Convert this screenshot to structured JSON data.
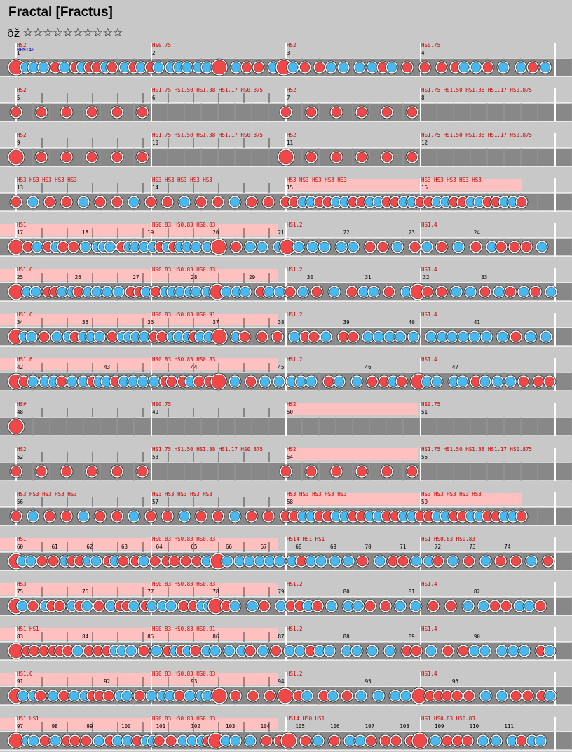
{
  "title": "Fractal [Fractus]",
  "difficulty_label": "ðž",
  "stars": "☆☆☆☆☆☆☆☆☆☆",
  "bpm_label": "BPM140",
  "colors": {
    "don": "#f04848",
    "ka": "#48b8f0",
    "lane": "#888888",
    "scroll_hl": "#ffc0c0",
    "hs_text": "#cc0000",
    "bpm_text": "#0000cc"
  },
  "rows": [
    {
      "measures": [
        "1",
        "2",
        "3",
        "4"
      ],
      "hs": [
        "HS2",
        "HS0.75",
        "HS2",
        "HS0.75"
      ],
      "notes": "",
      "hl": []
    },
    {
      "measures": [
        "5",
        "6",
        "7",
        "8"
      ],
      "hs": [
        "HS2",
        "HS1.75 HS1.50 HS1.38 HS1.17 HS0.875",
        "HS2",
        "HS1.75 HS1.50 HS1.38 HS1.17 HS0.875"
      ],
      "notes": "r6",
      "hl": []
    },
    {
      "measures": [
        "9",
        "10",
        "11",
        "12"
      ],
      "hs": [
        "HS2",
        "HS1.75 HS1.50 HS1.38 HS1.17 HS0.875",
        "HS2",
        "HS1.75 HS1.50 HS1.38 HS1.17 HS0.875"
      ],
      "notes": "R6",
      "hl": []
    },
    {
      "measures": [
        "13",
        "14",
        "15",
        "16"
      ],
      "hs": [
        "HS3 HS3 HS3 HS3 HS3",
        "HS3 HS3 HS3 HS3 HS3",
        "HS3 HS3 HS3 HS3 HS3",
        "HS3 HS3 HS3 HS3 HS3"
      ],
      "notes": "dense1",
      "hl": [
        [
          410,
          745
        ]
      ]
    },
    {
      "measures": [
        "17",
        "18",
        "19",
        "20",
        "21",
        "22",
        "23",
        "24"
      ],
      "hs": [
        "HS1",
        "HS0.83 HS0.83 HS0.83",
        "HS1.2",
        "HS1.4"
      ],
      "notes": "mix",
      "hl": [
        [
          0,
          396
        ]
      ]
    },
    {
      "measures": [
        "25",
        "26",
        "27",
        "28",
        "29",
        "30",
        "31",
        "32",
        "33"
      ],
      "hs": [
        "HS1.6",
        "HS0.83 HS0.83 HS0.83",
        "HS1.2",
        "HS1.4"
      ],
      "notes": "mix2",
      "hl": [
        [
          0,
          396
        ]
      ]
    },
    {
      "measures": [
        "34",
        "35",
        "36",
        "37",
        "38",
        "39",
        "40",
        "41"
      ],
      "hs": [
        "HS1.6",
        "HS0.83 HS0.83 HS0.91",
        "HS1.2",
        "HS1.4"
      ],
      "notes": "mix",
      "hl": [
        [
          0,
          396
        ]
      ]
    },
    {
      "measures": [
        "42",
        "43",
        "44",
        "45",
        "46",
        "47"
      ],
      "hs": [
        "HS1.6",
        "HS0.83 HS0.83 HS0.83",
        "HS1.2",
        "HS1.4"
      ],
      "notes": "mix2",
      "hl": [
        [
          0,
          396
        ]
      ]
    },
    {
      "measures": [
        "48",
        "49",
        "50",
        "51"
      ],
      "hs": [
        "HS#",
        "HS0.75",
        "HS2",
        "HS0.75"
      ],
      "notes": "R1",
      "hl": [
        [
          410,
          596
        ]
      ]
    },
    {
      "measures": [
        "52",
        "53",
        "54",
        "55"
      ],
      "hs": [
        "HS2",
        "HS1.75 HS1.50 HS1.38 HS1.17 HS0.875",
        "HS2",
        "HS1.75 HS1.50 HS1.38 HS1.17 HS0.875"
      ],
      "notes": "r6",
      "hl": [
        [
          410,
          596
        ]
      ]
    },
    {
      "measures": [
        "56",
        "57",
        "58",
        "59"
      ],
      "hs": [
        "HS3 HS3 HS3 HS3 HS3",
        "HS3 HS3 HS3 HS3 HS3",
        "HS3 HS3 HS3 HS3 HS3",
        "HS3 HS3 HS3 HS3 HS3"
      ],
      "notes": "dense1",
      "hl": [
        [
          410,
          745
        ]
      ]
    },
    {
      "measures": [
        "60",
        "61",
        "62",
        "63",
        "64",
        "65",
        "66",
        "67",
        "68",
        "69",
        "70",
        "71",
        "72",
        "73",
        "74"
      ],
      "hs": [
        "HS1",
        "HS0.83 HS0.83 HS0.83",
        "HS14 HS1 HS1",
        "HS1 HS0.83 HS0.83"
      ],
      "notes": "mix3",
      "hl": [
        [
          0,
          396
        ]
      ]
    },
    {
      "measures": [
        "75",
        "76",
        "77",
        "78",
        "79",
        "80",
        "81",
        "82"
      ],
      "hs": [
        "HS3",
        "HS0.83 HS0.83 HS0.83",
        "HS1.2",
        "HS1.4"
      ],
      "notes": "mix2",
      "hl": [
        [
          0,
          396
        ]
      ]
    },
    {
      "measures": [
        "83",
        "84",
        "85",
        "86",
        "87",
        "88",
        "89",
        "90"
      ],
      "hs": [
        "HS1 HS1",
        "HS0.83 HS0.83 HS0.91",
        "HS1.2",
        "HS1.4"
      ],
      "notes": "mix",
      "hl": [
        [
          0,
          396
        ]
      ]
    },
    {
      "measures": [
        "91",
        "92",
        "93",
        "94",
        "95",
        "96"
      ],
      "hs": [
        "HS1.6",
        "HS0.83 HS0.83 HS0.83",
        "HS1.2",
        "HS1.4"
      ],
      "notes": "mix2",
      "hl": [
        [
          0,
          396
        ]
      ]
    },
    {
      "measures": [
        "97",
        "98",
        "99",
        "100",
        "101",
        "102",
        "103",
        "104",
        "105",
        "106",
        "107",
        "108",
        "109",
        "110",
        "111"
      ],
      "hs": [
        "HS1 HS1",
        "HS0.83 HS0.83 HS0.83",
        "HS14 HS0 HS1",
        "HS1 HS0.83 HS0.83"
      ],
      "notes": "mix3",
      "hl": [
        [
          0,
          396
        ]
      ]
    }
  ]
}
